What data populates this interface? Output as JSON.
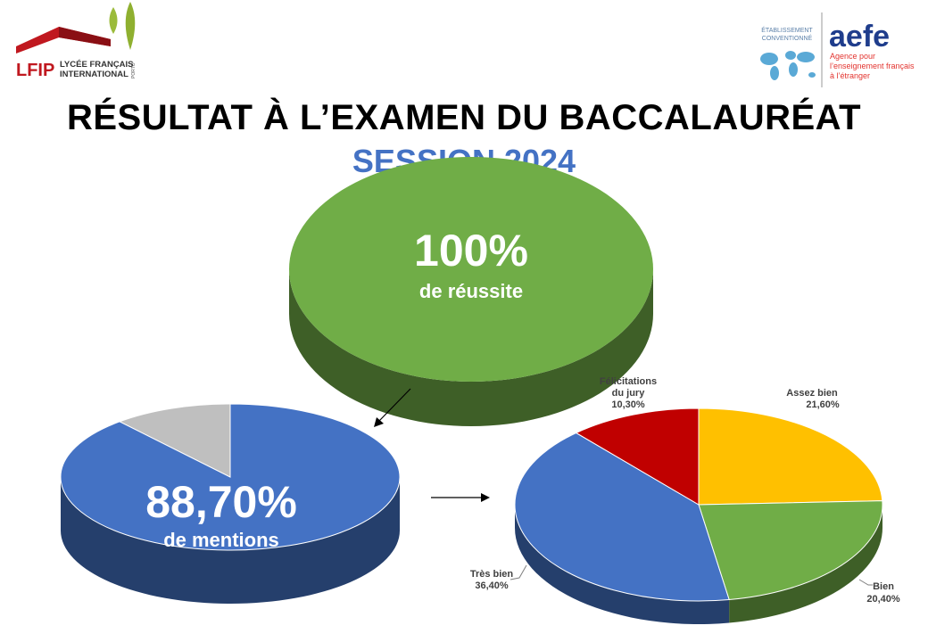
{
  "header": {
    "title": "RÉSULTAT À L’EXAMEN DU BACCALAURÉAT",
    "subtitle": "SESSION 2024"
  },
  "logos": {
    "lfip": {
      "acronym": "LFIP",
      "line1": "LYCÉE FRANÇAIS",
      "line2": "INTERNATIONAL",
      "city": "PORTO",
      "accent": "#c0181f",
      "leaf": "#9bbb3b"
    },
    "aefe": {
      "top1": "ÉTABLISSEMENT",
      "top2": "CONVENTIONNÉ",
      "name": "aefe",
      "line1": "Agence pour",
      "line2": "l’enseignement français",
      "line3": "à l’étranger",
      "name_color": "#1f3d8c",
      "tag_color": "#e3342f",
      "map_color": "#5aa9d6"
    }
  },
  "chart_data": [
    {
      "type": "pie",
      "title": "",
      "slices": [
        {
          "label": "",
          "value": 100,
          "color": "#70ad47"
        }
      ],
      "center_value": "100%",
      "center_caption": "de réussite"
    },
    {
      "type": "pie",
      "title": "",
      "slices": [
        {
          "label": "",
          "value": 88.7,
          "color": "#4472c4"
        },
        {
          "label": "",
          "value": 11.3,
          "color": "#bfbfbf"
        }
      ],
      "center_value": "88,70%",
      "center_caption": "de mentions"
    },
    {
      "type": "pie",
      "title": "",
      "slices": [
        {
          "label": "Assez bien",
          "value": 21.6,
          "value_label": "21,60%",
          "color": "#ffc000"
        },
        {
          "label": "Bien",
          "value": 20.4,
          "value_label": "20,40%",
          "color": "#70ad47"
        },
        {
          "label": "Très bien",
          "value": 36.4,
          "value_label": "36,40%",
          "color": "#4472c4"
        },
        {
          "label": "Félicitations du jury",
          "value": 10.3,
          "value_label": "10,30%",
          "color": "#c00000"
        }
      ]
    }
  ]
}
